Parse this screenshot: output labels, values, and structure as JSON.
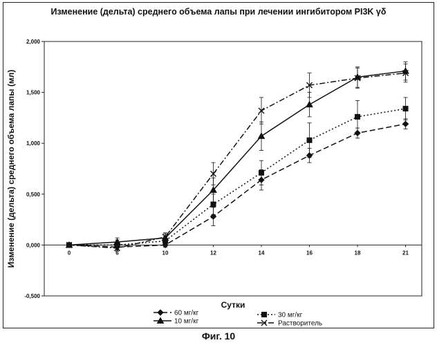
{
  "chart_data": {
    "type": "line",
    "title": "Изменение (дельта) среднего объема лапы при лечении ингибитором PI3K γδ",
    "xlabel": "Сутки",
    "ylabel": "Изменение (дельта) среднего объема лапы (мл)",
    "categories": [
      "0",
      "6",
      "10",
      "12",
      "14",
      "16",
      "18",
      "21"
    ],
    "ylim": [
      -0.5,
      2.0
    ],
    "yticks": [
      "-0,500",
      "0,000",
      "0,500",
      "1,000",
      "1,500",
      "2,000"
    ],
    "ytick_values": [
      -0.5,
      0,
      0.5,
      1.0,
      1.5,
      2.0
    ],
    "legend_position": "bottom",
    "series": [
      {
        "name": "60 мг/кг",
        "marker": "diamond",
        "dash": "8,4",
        "values": [
          0.0,
          -0.02,
          0.0,
          0.28,
          0.64,
          0.88,
          1.1,
          1.19
        ],
        "errors": [
          0.01,
          0.03,
          0.02,
          0.09,
          0.1,
          0.07,
          0.05,
          0.05
        ]
      },
      {
        "name": "10 мг/кг",
        "marker": "triangle",
        "dash": "",
        "values": [
          0.0,
          0.03,
          0.07,
          0.54,
          1.07,
          1.38,
          1.65,
          1.71
        ],
        "errors": [
          0.01,
          0.04,
          0.04,
          0.12,
          0.14,
          0.12,
          0.1,
          0.09
        ]
      },
      {
        "name": "30 мг/кг",
        "marker": "square",
        "dash": "2,3",
        "values": [
          0.0,
          0.0,
          0.04,
          0.4,
          0.71,
          1.03,
          1.26,
          1.34
        ],
        "errors": [
          0.01,
          0.05,
          0.04,
          0.1,
          0.12,
          0.17,
          0.16,
          0.11
        ]
      },
      {
        "name": "Растворитель",
        "marker": "x",
        "dash": "8,3,2,3",
        "values": [
          0.0,
          -0.03,
          0.08,
          0.7,
          1.32,
          1.57,
          1.64,
          1.69
        ],
        "errors": [
          0.01,
          0.03,
          0.04,
          0.11,
          0.13,
          0.12,
          0.1,
          0.09
        ]
      }
    ]
  },
  "figure_caption": "Фиг. 10",
  "legend_labels": [
    "60 мг/кг",
    "10 мг/кг",
    "30 мг/кг",
    "Растворитель"
  ]
}
